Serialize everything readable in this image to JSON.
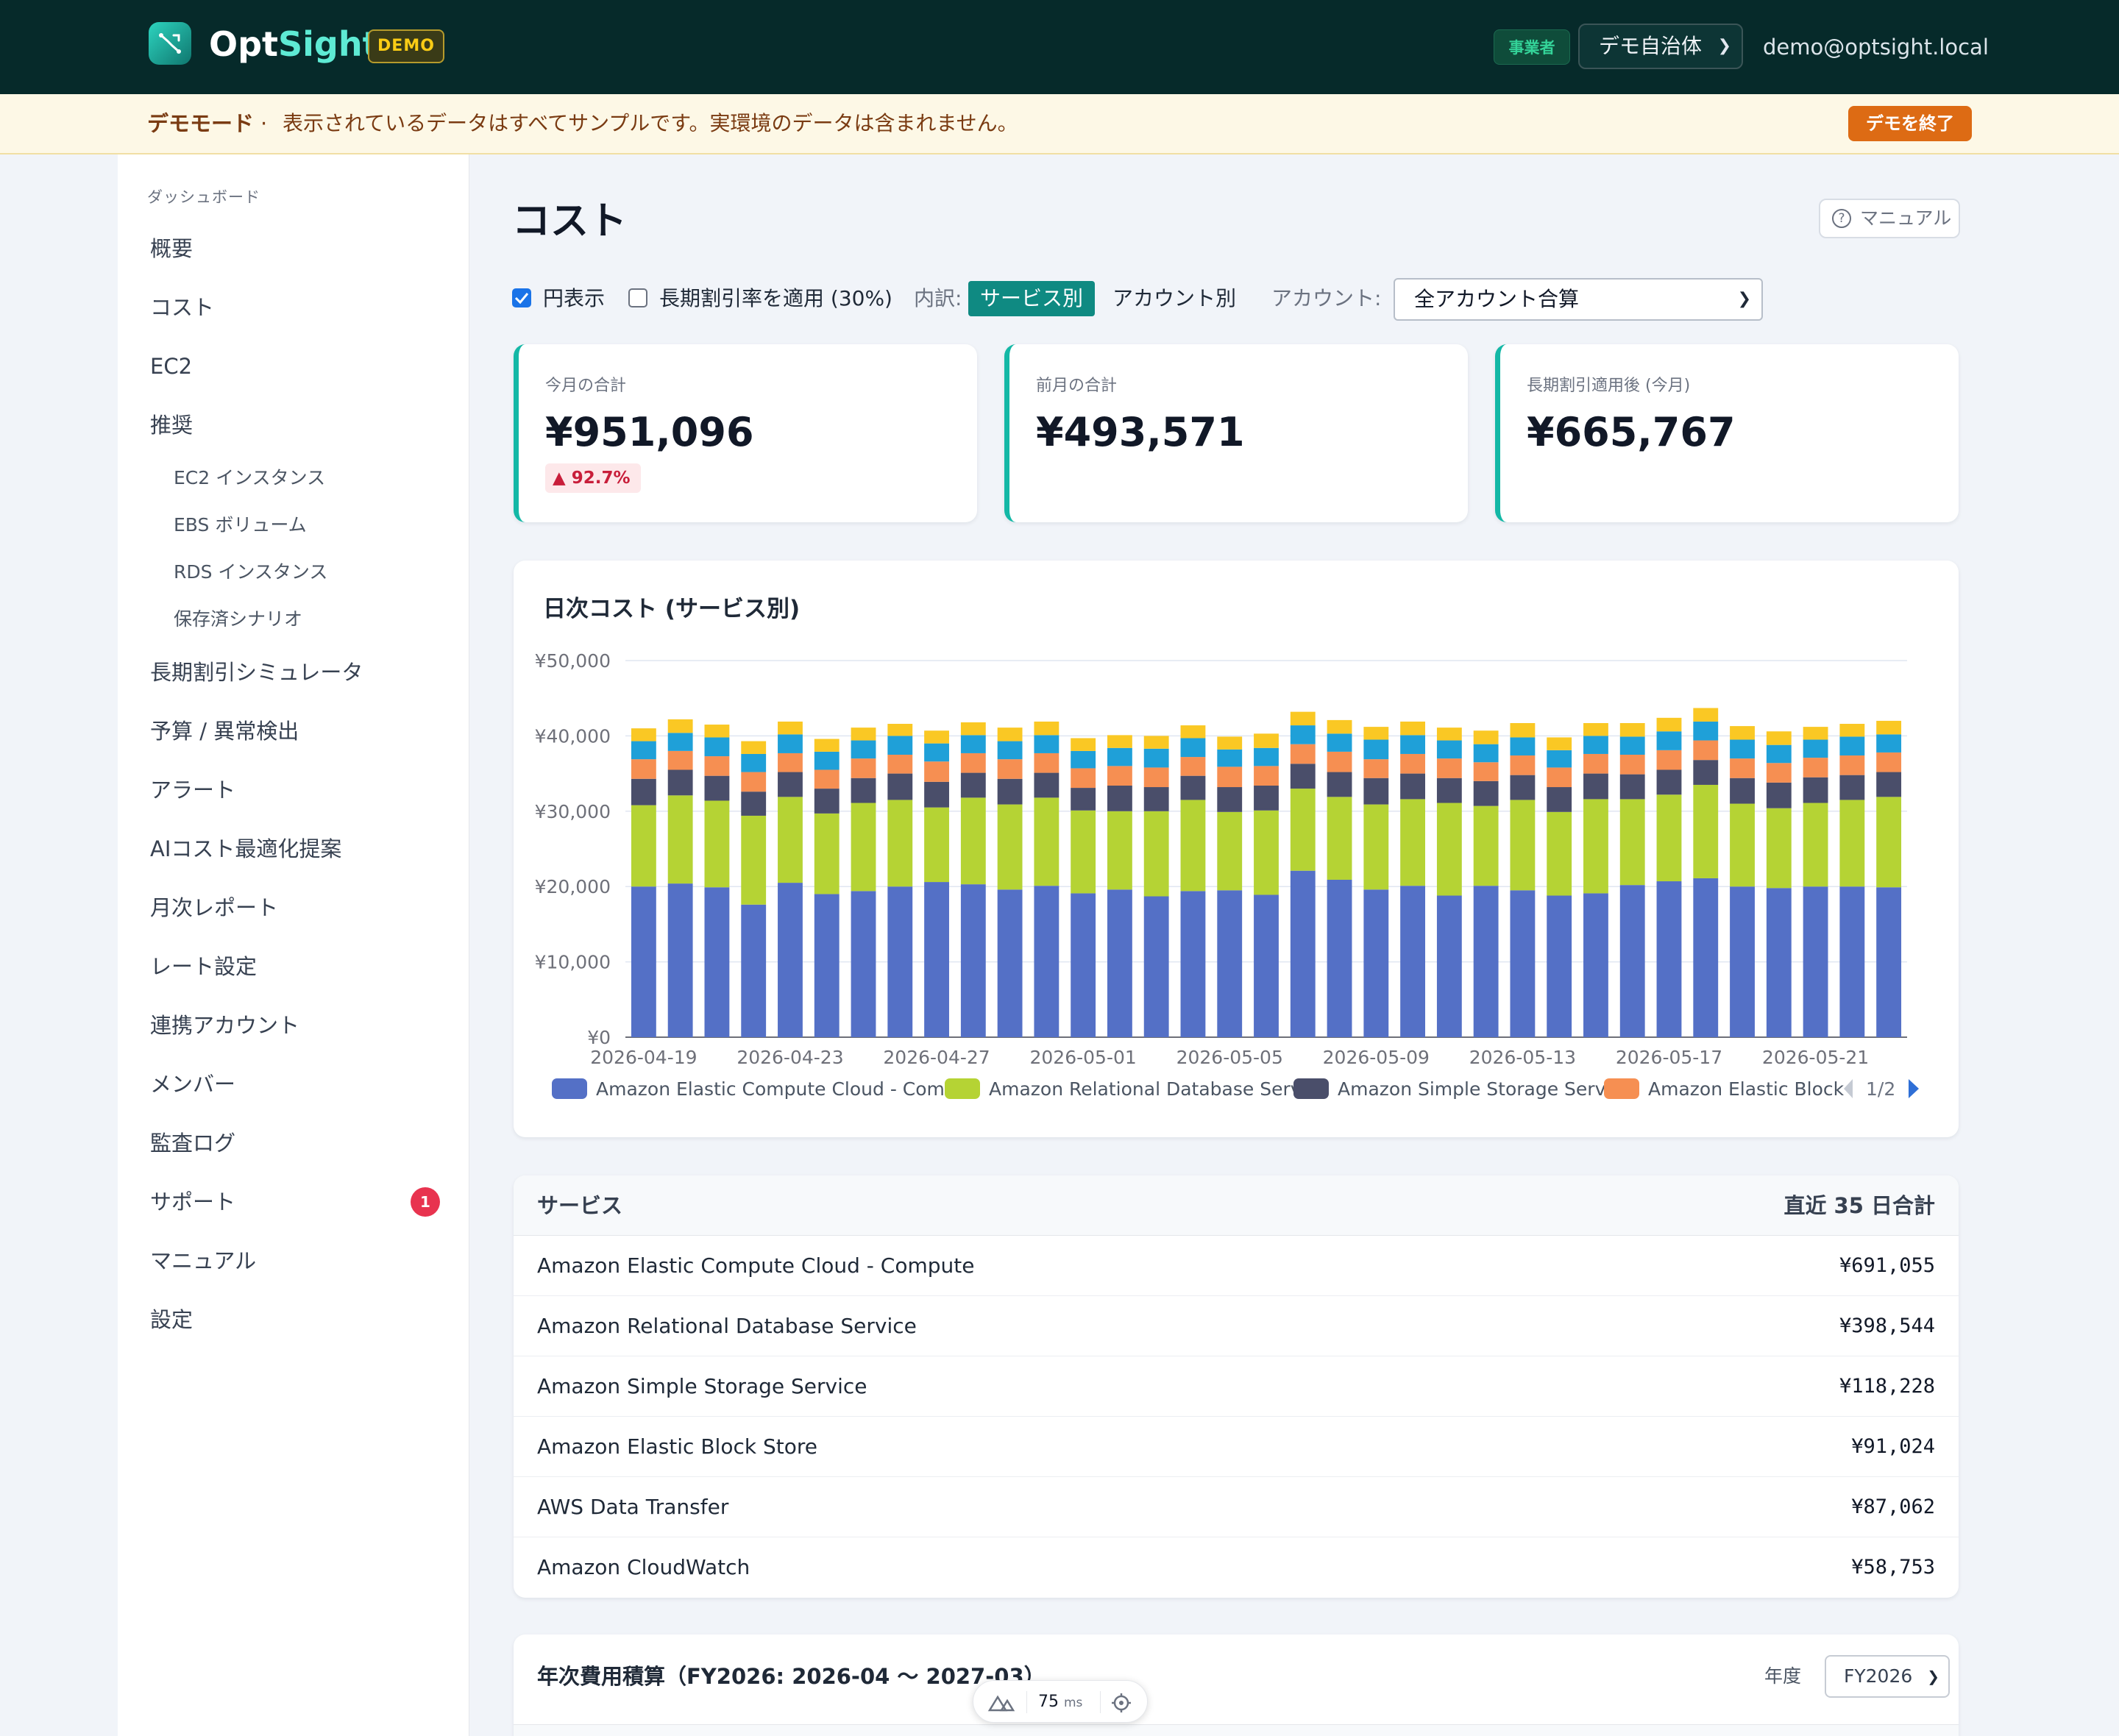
{
  "header": {
    "brand_part1": "Opt",
    "brand_part2": "Sight",
    "demo_badge": "DEMO",
    "role_badge": "事業者",
    "org_select": "デモ自治体",
    "user_email": "demo@optsight.local"
  },
  "banner": {
    "title": "デモモード",
    "separator": "·",
    "text": "表示されているデータはすべてサンプルです。実環境のデータは含まれません。",
    "end_button": "デモを終了"
  },
  "sidebar": {
    "section": "ダッシュボード",
    "items": [
      {
        "label": "概要"
      },
      {
        "label": "コスト"
      },
      {
        "label": "EC2"
      },
      {
        "label": "推奨"
      },
      {
        "label": "長期割引シミュレータ"
      },
      {
        "label": "予算 / 異常検出"
      },
      {
        "label": "アラート"
      },
      {
        "label": "AIコスト最適化提案"
      },
      {
        "label": "月次レポート"
      },
      {
        "label": "レート設定"
      },
      {
        "label": "連携アカウント"
      },
      {
        "label": "メンバー"
      },
      {
        "label": "監査ログ"
      },
      {
        "label": "サポート",
        "badge": "1"
      },
      {
        "label": "マニュアル"
      },
      {
        "label": "設定"
      }
    ],
    "subitems": [
      {
        "label": "EC2 インスタンス"
      },
      {
        "label": "EBS ボリューム"
      },
      {
        "label": "RDS インスタンス"
      },
      {
        "label": "保存済シナリオ"
      }
    ]
  },
  "page": {
    "title": "コスト",
    "manual_button": "マニュアル"
  },
  "controls": {
    "yen_label": "円表示",
    "yen_checked": true,
    "discount_label": "長期割引率を適用 (30%)",
    "discount_checked": false,
    "breakdown_label": "内訳:",
    "by_service": "サービス別",
    "by_account": "アカウント別",
    "account_label": "アカウント:",
    "account_select": "全アカウント合算"
  },
  "kpis": [
    {
      "label": "今月の合計",
      "value": "¥951,096",
      "delta": "▲ 92.7%"
    },
    {
      "label": "前月の合計",
      "value": "¥493,571"
    },
    {
      "label": "長期割引適用後 (今月)",
      "value": "¥665,767"
    }
  ],
  "chart_title": "日次コスト (サービス別)",
  "chart_data": {
    "type": "bar",
    "stacked": true,
    "title": "日次コスト (サービス別)",
    "ylim": [
      0,
      50000
    ],
    "y_ticks": [
      "¥0",
      "¥10,000",
      "¥20,000",
      "¥30,000",
      "¥40,000",
      "¥50,000"
    ],
    "x_tick_labels": [
      "2026-04-19",
      "2026-04-23",
      "2026-04-27",
      "2026-05-01",
      "2026-05-05",
      "2026-05-09",
      "2026-05-13",
      "2026-05-17",
      "2026-05-21"
    ],
    "categories": [
      "2026-04-19",
      "2026-04-20",
      "2026-04-21",
      "2026-04-22",
      "2026-04-23",
      "2026-04-24",
      "2026-04-25",
      "2026-04-26",
      "2026-04-27",
      "2026-04-28",
      "2026-04-29",
      "2026-04-30",
      "2026-05-01",
      "2026-05-02",
      "2026-05-03",
      "2026-05-04",
      "2026-05-05",
      "2026-05-06",
      "2026-05-07",
      "2026-05-08",
      "2026-05-09",
      "2026-05-10",
      "2026-05-11",
      "2026-05-12",
      "2026-05-13",
      "2026-05-14",
      "2026-05-15",
      "2026-05-16",
      "2026-05-17",
      "2026-05-18",
      "2026-05-19",
      "2026-05-20",
      "2026-05-21",
      "2026-05-22",
      "2026-05-23"
    ],
    "series": [
      {
        "name": "Amazon Elastic Compute Cloud - Compute",
        "color": "#5470c6",
        "values": [
          20000,
          20400,
          19900,
          17600,
          20500,
          19000,
          19400,
          20000,
          20600,
          20300,
          19600,
          20100,
          19100,
          19600,
          18700,
          19400,
          19500,
          18900,
          22100,
          20900,
          19600,
          20100,
          18800,
          20100,
          19500,
          18800,
          19100,
          20200,
          20700,
          21100,
          20000,
          19800,
          20000,
          20000,
          19900
        ]
      },
      {
        "name": "Amazon Relational Database Service",
        "color": "#b5d334",
        "values": [
          10800,
          11700,
          11500,
          11800,
          11400,
          10700,
          11700,
          11500,
          9900,
          11500,
          11300,
          11700,
          11000,
          10400,
          11300,
          12100,
          10400,
          11200,
          10900,
          11000,
          11300,
          11500,
          12300,
          10600,
          12000,
          11100,
          12500,
          11400,
          11500,
          12400,
          11000,
          10600,
          11100,
          11500,
          12000
        ]
      },
      {
        "name": "Amazon Simple Storage Service",
        "color": "#4a4e6a",
        "values": [
          3500,
          3400,
          3300,
          3200,
          3300,
          3300,
          3300,
          3500,
          3400,
          3300,
          3400,
          3300,
          3000,
          3400,
          3200,
          3200,
          3300,
          3300,
          3300,
          3300,
          3500,
          3400,
          3300,
          3300,
          3300,
          3300,
          3400,
          3300,
          3300,
          3300,
          3400,
          3400,
          3400,
          3300,
          3300
        ]
      },
      {
        "name": "Amazon Elastic Block Store",
        "color": "#f68f52",
        "values": [
          2600,
          2500,
          2600,
          2600,
          2500,
          2500,
          2600,
          2500,
          2700,
          2600,
          2600,
          2600,
          2600,
          2600,
          2600,
          2500,
          2700,
          2600,
          2600,
          2700,
          2500,
          2600,
          2600,
          2500,
          2600,
          2600,
          2600,
          2600,
          2600,
          2600,
          2600,
          2600,
          2600,
          2600,
          2600
        ]
      },
      {
        "name": "AWS Data Transfer",
        "color": "#1fa0d8",
        "values": [
          2400,
          2400,
          2500,
          2400,
          2500,
          2400,
          2400,
          2500,
          2400,
          2400,
          2400,
          2400,
          2300,
          2400,
          2500,
          2500,
          2300,
          2400,
          2500,
          2400,
          2600,
          2500,
          2400,
          2400,
          2400,
          2300,
          2400,
          2400,
          2500,
          2500,
          2500,
          2400,
          2400,
          2500,
          2400
        ]
      },
      {
        "name": "Amazon CloudWatch",
        "color": "#fac824",
        "values": [
          1700,
          1800,
          1700,
          1700,
          1700,
          1700,
          1700,
          1600,
          1700,
          1700,
          1800,
          1800,
          1700,
          1700,
          1700,
          1700,
          1700,
          1900,
          1800,
          1800,
          1700,
          1800,
          1700,
          1800,
          1900,
          1700,
          1700,
          1800,
          1800,
          1800,
          1800,
          1800,
          1700,
          1700,
          1800
        ]
      }
    ],
    "legend": {
      "visible_items": [
        "Amazon Elastic Compute Cloud - Comp",
        "Amazon Relational Database Servic",
        "Amazon Simple Storage Servic",
        "Amazon Elastic Block"
      ],
      "page": "1/2",
      "placement": "bottom"
    }
  },
  "service_table": {
    "col_service": "サービス",
    "col_total": "直近 35 日合計",
    "rows": [
      {
        "name": "Amazon Elastic Compute Cloud - Compute",
        "total": "¥691,055"
      },
      {
        "name": "Amazon Relational Database Service",
        "total": "¥398,544"
      },
      {
        "name": "Amazon Simple Storage Service",
        "total": "¥118,228"
      },
      {
        "name": "Amazon Elastic Block Store",
        "total": "¥91,024"
      },
      {
        "name": "AWS Data Transfer",
        "total": "¥87,062"
      },
      {
        "name": "Amazon CloudWatch",
        "total": "¥58,753"
      }
    ]
  },
  "annual": {
    "title": "年次費用積算（FY2026: 2026-04 〜 2027-03）",
    "fy_label": "年度",
    "fy_select": "FY2026"
  },
  "devtools": {
    "ms_value": "75",
    "ms_unit": "ms"
  }
}
